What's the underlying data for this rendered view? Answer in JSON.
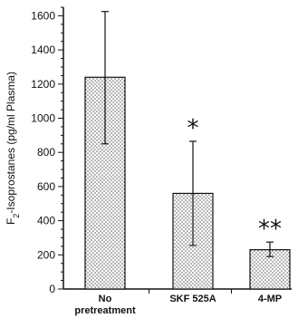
{
  "chart_data": {
    "type": "bar",
    "categories": [
      "No pretreatment",
      "SKF 525A",
      "4-MP"
    ],
    "category_label_lines": [
      [
        "No",
        "pretreatment"
      ],
      [
        "SKF 525A"
      ],
      [
        "4-MP"
      ]
    ],
    "values": [
      1240,
      560,
      230
    ],
    "error_upper": [
      1625,
      865,
      275
    ],
    "error_lower": [
      850,
      255,
      190
    ],
    "significance": [
      "",
      "*",
      "**"
    ],
    "ylabel_prefix": "F",
    "ylabel_subscript": "2",
    "ylabel_suffix": "-Isoprostanes (pg/ml Plasma)",
    "ylim": [
      0,
      1650
    ],
    "yticks": [
      0,
      200,
      400,
      600,
      800,
      1000,
      1200,
      1400,
      1600
    ],
    "grid": false,
    "bar_fill": "stippled"
  }
}
